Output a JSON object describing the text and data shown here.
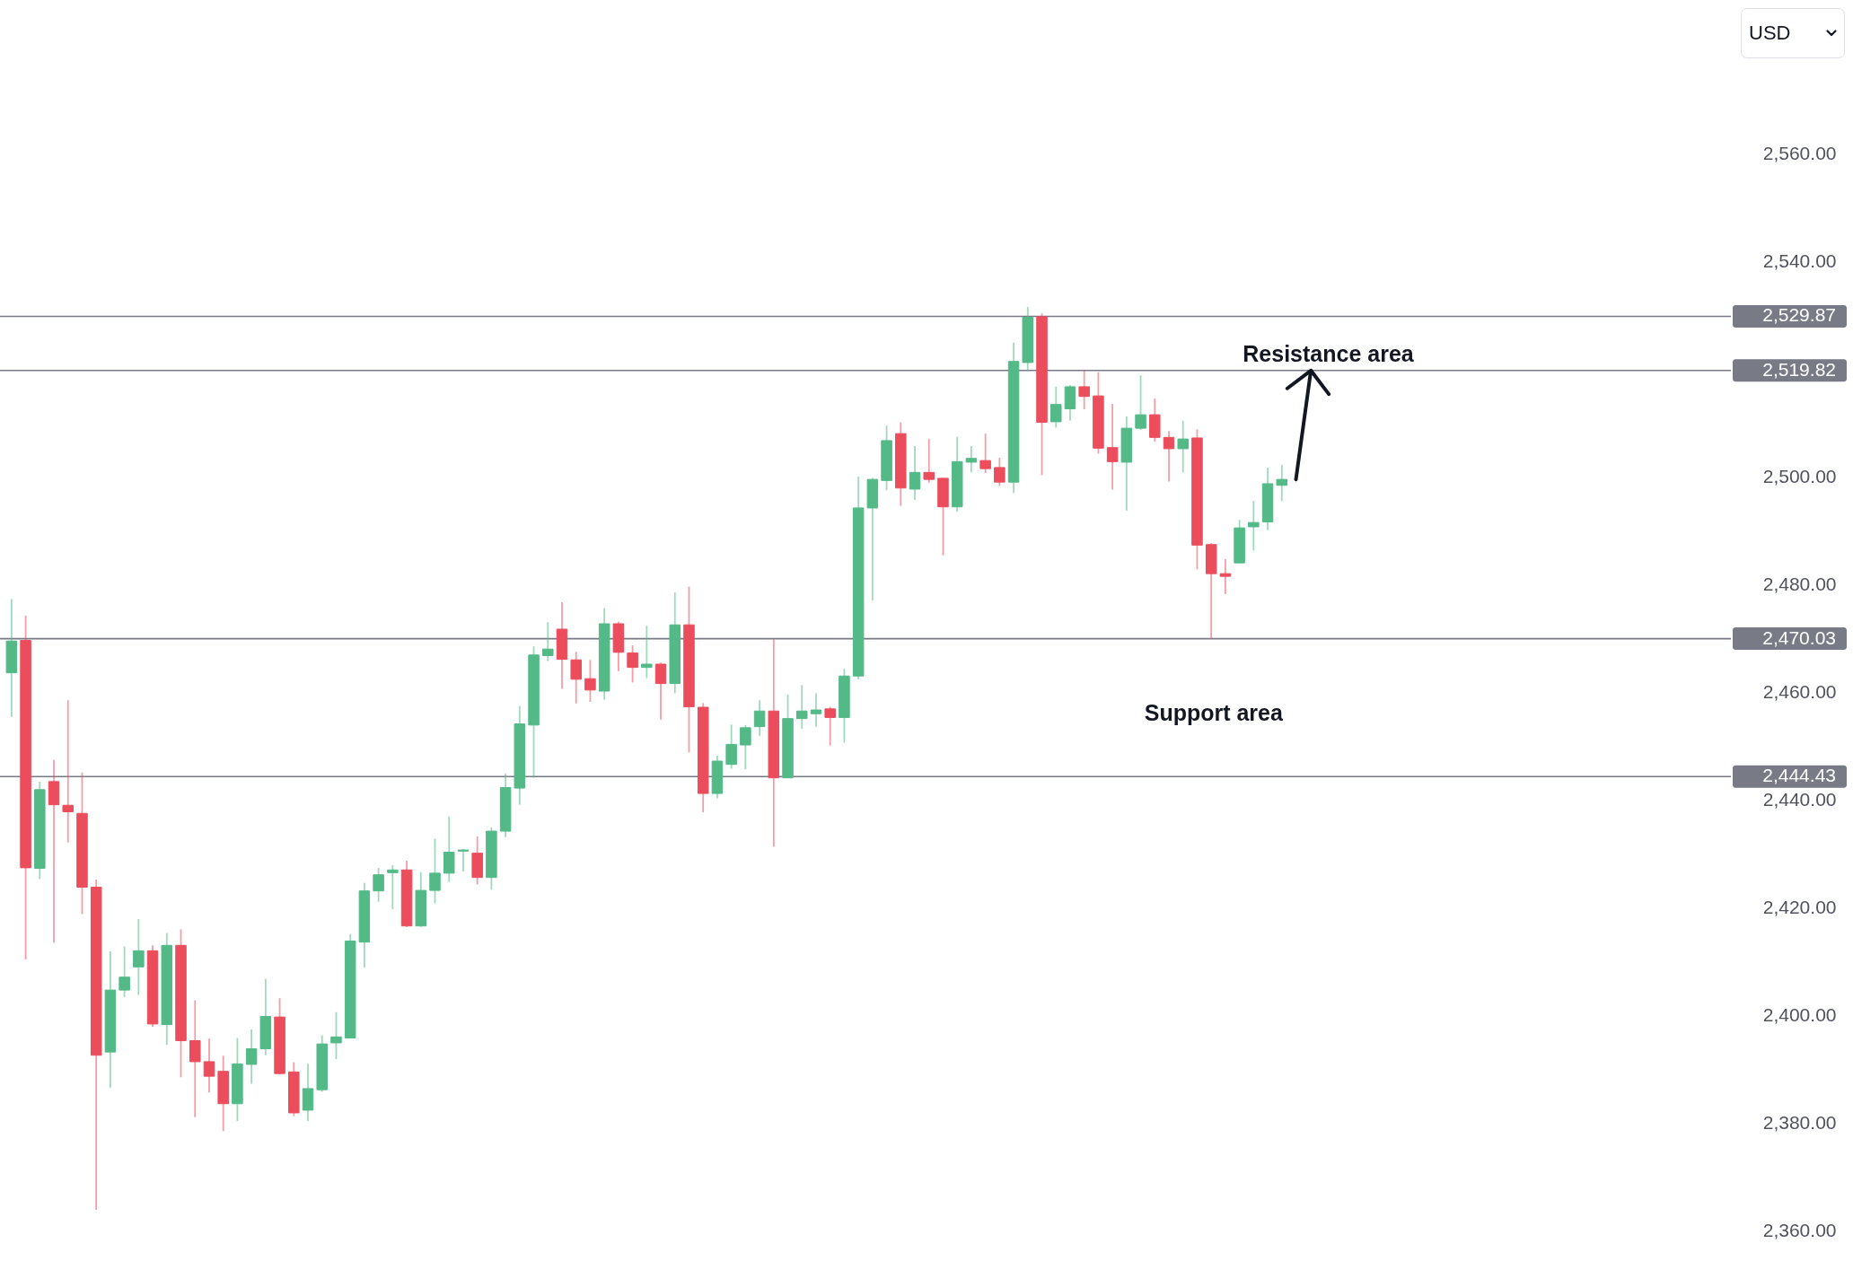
{
  "chart_data": {
    "type": "candlestick",
    "categories": [
      null,
      null,
      null,
      null,
      null,
      null,
      null,
      null,
      null,
      null,
      null,
      null,
      null,
      null,
      null,
      null,
      null,
      null,
      null,
      null,
      null,
      null,
      null,
      null,
      null,
      null,
      null,
      null,
      null,
      null,
      null,
      null,
      null,
      null,
      null,
      null,
      null,
      null,
      null,
      null,
      null,
      null,
      null,
      null,
      null,
      null,
      null,
      null,
      null,
      null,
      null,
      null,
      null,
      null,
      null,
      null,
      null,
      null,
      null,
      null,
      null,
      null,
      null,
      null,
      null,
      null,
      null,
      null,
      null,
      null,
      null,
      null,
      null,
      null,
      null,
      null,
      null,
      null,
      null,
      null,
      null,
      null,
      null,
      null,
      null,
      null,
      null,
      null,
      null,
      null,
      null,
      null,
      null,
      null,
      null,
      null,
      null,
      null,
      null,
      null,
      null,
      null,
      null,
      null,
      null,
      null,
      null,
      null,
      null,
      null,
      null,
      null,
      null,
      null,
      null,
      null,
      null,
      null,
      null,
      null,
      null,
      null
    ],
    "ohlc": [
      [
        2463.7,
        2477.4,
        2455.5,
        2469.6
      ],
      [
        2469.7,
        2474.3,
        2410.5,
        2427.5
      ],
      [
        2427.4,
        2443.5,
        2425.4,
        2442.0
      ],
      [
        2443.5,
        2447.5,
        2413.6,
        2439.2
      ],
      [
        2439.1,
        2458.6,
        2432.2,
        2437.9
      ],
      [
        2437.6,
        2445.2,
        2418.9,
        2423.9
      ],
      [
        2423.9,
        2425.3,
        2364.0,
        2392.7
      ],
      [
        2393.3,
        2412.0,
        2386.7,
        2404.8
      ],
      [
        2404.8,
        2412.9,
        2403.5,
        2407.2
      ],
      [
        2409.1,
        2418.0,
        2403.9,
        2412.1
      ],
      [
        2412.1,
        2413.1,
        2398.0,
        2398.5
      ],
      [
        2398.4,
        2415.4,
        2394.6,
        2413.1
      ],
      [
        2413.1,
        2416.1,
        2388.6,
        2395.4
      ],
      [
        2395.4,
        2402.9,
        2381.2,
        2391.5
      ],
      [
        2391.5,
        2395.8,
        2385.8,
        2388.8
      ],
      [
        2389.7,
        2392.6,
        2378.6,
        2383.7
      ],
      [
        2383.7,
        2395.9,
        2380.5,
        2391.1
      ],
      [
        2391.0,
        2397.5,
        2387.4,
        2393.9
      ],
      [
        2393.9,
        2406.9,
        2392.7,
        2399.9
      ],
      [
        2399.8,
        2403.3,
        2389.2,
        2389.3
      ],
      [
        2389.6,
        2391.4,
        2381.4,
        2382.0
      ],
      [
        2382.5,
        2391.1,
        2380.5,
        2386.5
      ],
      [
        2386.3,
        2396.4,
        2385.9,
        2394.8
      ],
      [
        2395.0,
        2400.7,
        2392.0,
        2396.1
      ],
      [
        2395.9,
        2415.2,
        2395.9,
        2413.9
      ],
      [
        2413.7,
        2424.7,
        2409.0,
        2423.2
      ],
      [
        2423.2,
        2427.5,
        2421.2,
        2426.2
      ],
      [
        2426.6,
        2428.0,
        2419.8,
        2427.1
      ],
      [
        2427.1,
        2428.8,
        2416.5,
        2416.7
      ],
      [
        2416.7,
        2426.7,
        2416.5,
        2423.3
      ],
      [
        2423.3,
        2432.9,
        2420.9,
        2426.5
      ],
      [
        2426.5,
        2437.0,
        2424.9,
        2430.4
      ],
      [
        2430.6,
        2431.0,
        2426.8,
        2430.8
      ],
      [
        2430.2,
        2433.3,
        2424.4,
        2425.7
      ],
      [
        2425.7,
        2435.0,
        2423.4,
        2434.3
      ],
      [
        2434.3,
        2445.0,
        2433.2,
        2442.4
      ],
      [
        2442.3,
        2457.5,
        2439.2,
        2454.2
      ],
      [
        2454.0,
        2468.6,
        2444.2,
        2467.0
      ],
      [
        2466.9,
        2473.1,
        2465.9,
        2468.1
      ],
      [
        2471.8,
        2476.8,
        2460.7,
        2466.2
      ],
      [
        2466.1,
        2467.6,
        2458.0,
        2462.5
      ],
      [
        2462.6,
        2466.1,
        2458.3,
        2460.5
      ],
      [
        2460.3,
        2475.7,
        2458.7,
        2472.8
      ],
      [
        2472.8,
        2473.2,
        2464.0,
        2467.5
      ],
      [
        2467.4,
        2468.8,
        2461.9,
        2464.7
      ],
      [
        2464.7,
        2472.4,
        2462.7,
        2465.3
      ],
      [
        2465.3,
        2465.6,
        2455.0,
        2461.7
      ],
      [
        2461.7,
        2478.6,
        2459.9,
        2472.6
      ],
      [
        2472.6,
        2479.7,
        2448.9,
        2457.4
      ],
      [
        2457.3,
        2458.1,
        2437.8,
        2441.3
      ],
      [
        2441.3,
        2448.3,
        2440.4,
        2447.3
      ],
      [
        2446.7,
        2454.1,
        2445.9,
        2450.4
      ],
      [
        2450.3,
        2454.0,
        2445.8,
        2453.5
      ],
      [
        2453.7,
        2458.6,
        2452.0,
        2456.6
      ],
      [
        2456.6,
        2470.0,
        2431.4,
        2444.2
      ],
      [
        2444.2,
        2459.7,
        2444.2,
        2455.2
      ],
      [
        2455.2,
        2461.4,
        2453.3,
        2456.6
      ],
      [
        2456.1,
        2459.9,
        2453.7,
        2456.8
      ],
      [
        2457.0,
        2457.4,
        2450.2,
        2455.4
      ],
      [
        2455.4,
        2464.4,
        2450.7,
        2463.1
      ],
      [
        2463.1,
        2500.1,
        2462.5,
        2494.3
      ],
      [
        2494.3,
        2499.9,
        2477.1,
        2499.6
      ],
      [
        2499.4,
        2509.6,
        2497.6,
        2506.8
      ],
      [
        2508.1,
        2510.2,
        2494.7,
        2498.0
      ],
      [
        2497.8,
        2505.8,
        2495.8,
        2500.9
      ],
      [
        2500.9,
        2507.1,
        2499.0,
        2499.6
      ],
      [
        2499.8,
        2499.9,
        2485.5,
        2494.5
      ],
      [
        2494.5,
        2507.5,
        2493.6,
        2502.9
      ],
      [
        2502.8,
        2505.8,
        2500.9,
        2503.5
      ],
      [
        2503.1,
        2508.1,
        2500.8,
        2501.6
      ],
      [
        2501.8,
        2503.6,
        2498.4,
        2499.1
      ],
      [
        2499.1,
        2525.0,
        2497.1,
        2521.5
      ],
      [
        2521.3,
        2531.6,
        2519.7,
        2529.7
      ],
      [
        2529.8,
        2530.4,
        2500.4,
        2510.2
      ],
      [
        2510.3,
        2516.8,
        2509.2,
        2513.5
      ],
      [
        2512.7,
        2517.1,
        2510.5,
        2516.8
      ],
      [
        2516.8,
        2519.9,
        2512.6,
        2515.0
      ],
      [
        2515.1,
        2519.5,
        2504.4,
        2505.4
      ],
      [
        2505.5,
        2513.6,
        2497.7,
        2502.9
      ],
      [
        2502.8,
        2511.3,
        2493.8,
        2509.1
      ],
      [
        2509.1,
        2518.9,
        2508.8,
        2511.6
      ],
      [
        2511.6,
        2514.6,
        2506.6,
        2507.4
      ],
      [
        2507.4,
        2508.6,
        2499.2,
        2505.3
      ],
      [
        2505.3,
        2510.5,
        2500.9,
        2507.1
      ],
      [
        2507.3,
        2508.9,
        2482.9,
        2487.4
      ],
      [
        2487.5,
        2487.8,
        2470.0,
        2482.1
      ],
      [
        2482.1,
        2484.8,
        2478.3,
        2481.6
      ],
      [
        2484.1,
        2492.1,
        2484.1,
        2490.6
      ],
      [
        2490.8,
        2495.6,
        2486.4,
        2491.6
      ],
      [
        2491.7,
        2501.8,
        2490.2,
        2498.8
      ],
      [
        2498.5,
        2502.3,
        2495.6,
        2499.6
      ],
      null,
      null,
      null,
      null,
      null,
      null,
      null,
      null,
      null,
      null,
      null,
      null,
      null,
      null,
      null,
      null,
      null,
      null,
      null,
      null,
      null,
      null,
      null,
      null,
      null,
      null,
      null,
      null,
      null,
      null,
      null
    ],
    "colors": [
      "#53b987",
      "#eb4d5c",
      "#53b987",
      "#eb4d5c",
      "#eb4d5c",
      "#eb4d5c",
      "#eb4d5c",
      "#53b987",
      "#53b987",
      "#53b987",
      "#eb4d5c",
      "#53b987",
      "#eb4d5c",
      "#eb4d5c",
      "#eb4d5c",
      "#eb4d5c",
      "#53b987",
      "#53b987",
      "#53b987",
      "#eb4d5c",
      "#eb4d5c",
      "#53b987",
      "#53b987",
      "#53b987",
      "#53b987",
      "#53b987",
      "#53b987",
      "#53b987",
      "#eb4d5c",
      "#53b987",
      "#53b987",
      "#53b987",
      "#53b987",
      "#eb4d5c",
      "#53b987",
      "#53b987",
      "#53b987",
      "#53b987",
      "#53b987",
      "#eb4d5c",
      "#eb4d5c",
      "#eb4d5c",
      "#53b987",
      "#eb4d5c",
      "#eb4d5c",
      "#53b987",
      "#eb4d5c",
      "#53b987",
      "#eb4d5c",
      "#eb4d5c",
      "#53b987",
      "#53b987",
      "#53b987",
      "#53b987",
      "#eb4d5c",
      "#53b987",
      "#53b987",
      "#53b987",
      "#eb4d5c",
      "#53b987",
      "#53b987",
      "#53b987",
      "#53b987",
      "#eb4d5c",
      "#53b987",
      "#eb4d5c",
      "#eb4d5c",
      "#53b987",
      "#53b987",
      "#eb4d5c",
      "#eb4d5c",
      "#53b987",
      "#53b987",
      "#eb4d5c",
      "#53b987",
      "#53b987",
      "#eb4d5c",
      "#eb4d5c",
      "#eb4d5c",
      "#53b987",
      "#53b987",
      "#eb4d5c",
      "#eb4d5c",
      "#53b987",
      "#eb4d5c",
      "#eb4d5c",
      "#eb4d5c",
      "#53b987",
      "#53b987",
      "#53b987",
      "#53b987",
      null,
      null,
      null,
      null,
      null,
      null,
      null,
      null,
      null,
      null,
      null,
      null,
      null,
      null,
      null,
      null,
      null,
      null,
      null,
      null,
      null,
      null,
      null,
      null,
      null,
      null,
      null,
      null,
      null,
      null,
      null
    ],
    "ylabel": "USD",
    "ylim": [
      2354.5,
      2588.6
    ],
    "yticks": [
      {
        "value": 2360,
        "label": "2,360.00"
      },
      {
        "value": 2380,
        "label": "2,380.00"
      },
      {
        "value": 2400,
        "label": "2,400.00"
      },
      {
        "value": 2420,
        "label": "2,420.00"
      },
      {
        "value": 2440,
        "label": "2,440.00"
      },
      {
        "value": 2460,
        "label": "2,460.00"
      },
      {
        "value": 2480,
        "label": "2,480.00"
      },
      {
        "value": 2500,
        "label": "2,500.00"
      },
      {
        "value": 2540,
        "label": "2,540.00"
      },
      {
        "value": 2560,
        "label": "2,560.00"
      }
    ],
    "ref_lines": [
      {
        "axis": "y",
        "value": 2529.87,
        "label": "2,529.87",
        "color": "#787b86"
      },
      {
        "axis": "y",
        "value": 2519.82,
        "label": "2,519.82",
        "color": "#787b86"
      },
      {
        "axis": "y",
        "value": 2470.03,
        "label": "2,470.03",
        "color": "#787b86"
      },
      {
        "axis": "y",
        "value": 2444.43,
        "label": "2,444.43",
        "color": "#787b86"
      }
    ],
    "annotations": [
      "Resistance area",
      "Support area"
    ],
    "tick_labels": "y"
  }
}
